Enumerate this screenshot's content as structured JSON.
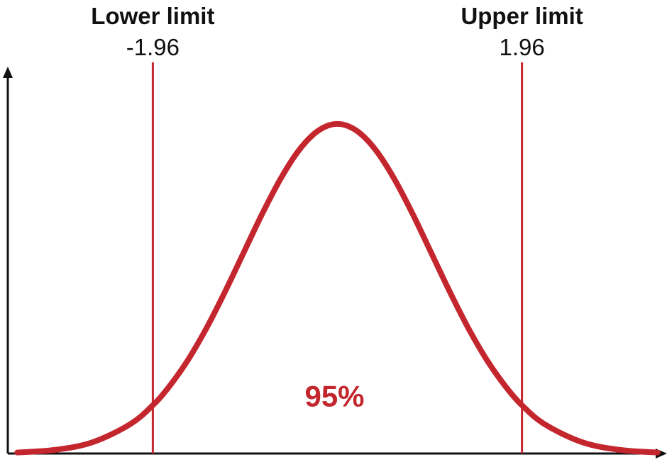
{
  "colors": {
    "curve": "#c4262e",
    "limit_line": "#c4262e",
    "axis": "#111111",
    "area_label": "#c4262e"
  },
  "chart_data": {
    "type": "line",
    "title": "",
    "xlabel": "",
    "ylabel": "",
    "grid": false,
    "legend": "none",
    "xlim": [
      -3.5,
      3.5
    ],
    "ylim": [
      0,
      0.47
    ],
    "series": [
      {
        "distribution": "standard normal",
        "x": [
          -3.4,
          -3.0,
          -2.6,
          -2.2,
          -1.96,
          -1.8,
          -1.6,
          -1.4,
          -1.2,
          -1.0,
          -0.8,
          -0.6,
          -0.4,
          -0.2,
          0.0,
          0.2,
          0.4,
          0.6,
          0.8,
          1.0,
          1.2,
          1.4,
          1.6,
          1.8,
          1.96,
          2.2,
          2.6,
          3.0,
          3.4
        ],
        "y": [
          0.0012,
          0.0044,
          0.0136,
          0.0355,
          0.0584,
          0.079,
          0.1109,
          0.1497,
          0.1942,
          0.242,
          0.2897,
          0.3332,
          0.3683,
          0.391,
          0.3989,
          0.391,
          0.3683,
          0.3332,
          0.2897,
          0.242,
          0.1942,
          0.1497,
          0.1109,
          0.079,
          0.0584,
          0.0355,
          0.0136,
          0.0044,
          0.0012
        ]
      }
    ],
    "limits": {
      "lower": {
        "name": "Lower limit",
        "value": -1.96,
        "value_label": "-1.96"
      },
      "upper": {
        "name": "Upper limit",
        "value": 1.96,
        "value_label": "1.96"
      }
    },
    "annotations": [
      {
        "text": "95%",
        "x": 0.0,
        "y": 0.07
      }
    ]
  }
}
